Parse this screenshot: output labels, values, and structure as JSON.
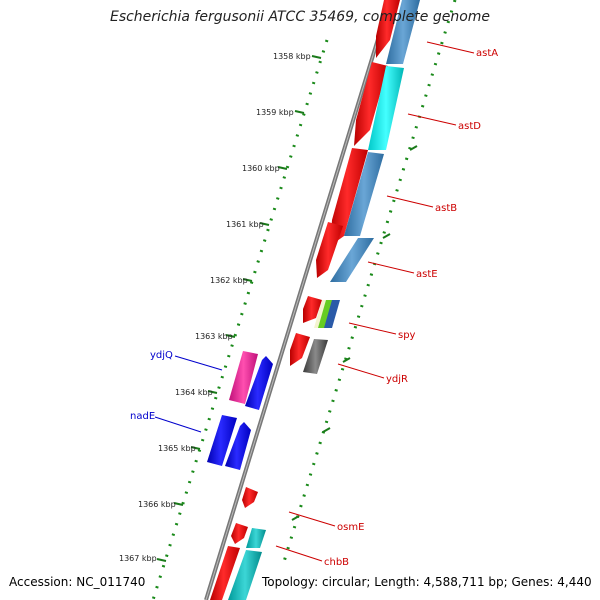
{
  "title": "Escherichia fergusonii ATCC 35469, complete genome",
  "ruler": [
    "1358 kbp",
    "1359 kbp",
    "1360 kbp",
    "1361 kbp",
    "1362 kbp",
    "1363 kbp",
    "1364 kbp",
    "1365 kbp",
    "1366 kbp",
    "1367 kbp"
  ],
  "genes": {
    "astA": {
      "label": "astA",
      "strand": "forward"
    },
    "astD": {
      "label": "astD",
      "strand": "forward"
    },
    "astB": {
      "label": "astB",
      "strand": "forward"
    },
    "astE": {
      "label": "astE",
      "strand": "forward"
    },
    "spy": {
      "label": "spy",
      "strand": "forward"
    },
    "ydjR": {
      "label": "ydjR",
      "strand": "forward"
    },
    "osmE": {
      "label": "osmE",
      "strand": "forward"
    },
    "chbB": {
      "label": "chbB",
      "strand": "forward"
    },
    "ydjQ": {
      "label": "ydjQ",
      "strand": "reverse"
    },
    "nadE": {
      "label": "nadE",
      "strand": "reverse"
    }
  },
  "colors": {
    "forward_label": "#cc0000",
    "reverse_label": "#0000cc",
    "ruler": "#1a8a1a",
    "backbone": "#777777"
  },
  "footer": {
    "accession": "Accession: NC_011740",
    "summary": "Topology: circular; Length: 4,588,711 bp; Genes: 4,440"
  }
}
